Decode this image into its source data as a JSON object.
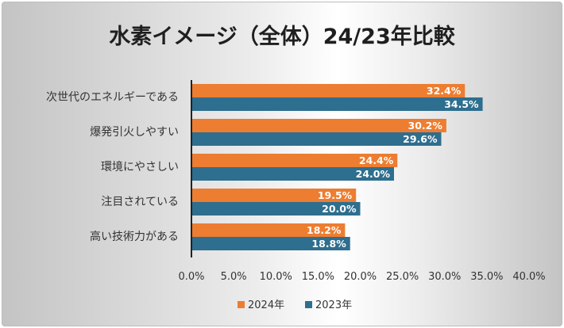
{
  "chart_data": {
    "type": "bar",
    "orientation": "horizontal",
    "title": "水素イメージ（全体）24/23年比較",
    "categories": [
      "次世代のエネルギーである",
      "爆発引火しやすい",
      "環境にやさしい",
      "注目されている",
      "高い技術力がある"
    ],
    "series": [
      {
        "name": "2024年",
        "values": [
          32.4,
          30.2,
          24.4,
          19.5,
          18.2
        ],
        "labels": [
          "32.4%",
          "30.2%",
          "24.4%",
          "19.5%",
          "18.2%"
        ],
        "color": "#ED7D31"
      },
      {
        "name": "2023年",
        "values": [
          34.5,
          29.6,
          24.0,
          20.0,
          18.8
        ],
        "labels": [
          "34.5%",
          "29.6%",
          "24.0%",
          "20.0%",
          "18.8%"
        ],
        "color": "#2E6E8E"
      }
    ],
    "xlim": [
      0,
      40
    ],
    "xticks": [
      "0.0%",
      "5.0%",
      "10.0%",
      "15.0%",
      "20.0%",
      "25.0%",
      "30.0%",
      "35.0%",
      "40.0%"
    ],
    "xlabel": "",
    "ylabel": "",
    "grid": false,
    "legend": "bottom"
  }
}
